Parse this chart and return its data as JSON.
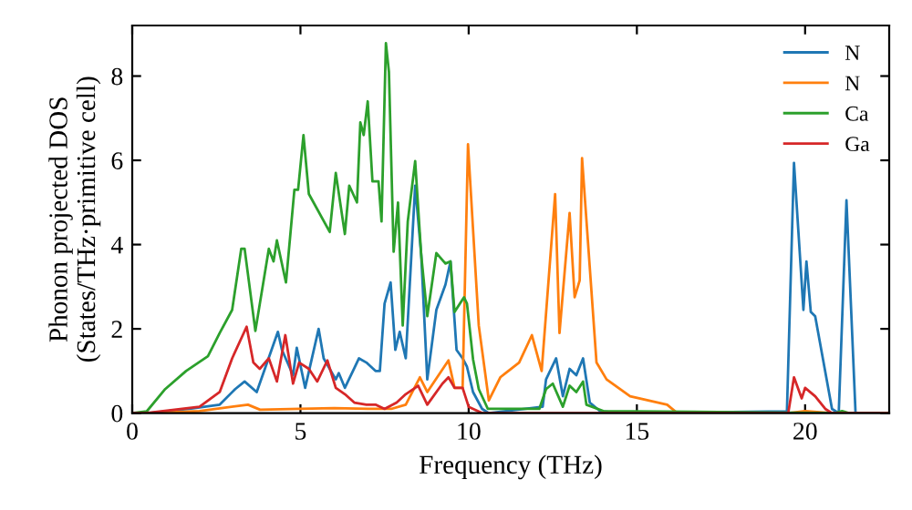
{
  "chart_data": {
    "type": "line",
    "xlabel": "Frequency (THz)",
    "ylabel": "Phonon projected DOS\n(States/THz·primitive cell)",
    "xlim": [
      0,
      22.5
    ],
    "ylim": [
      0,
      9.2
    ],
    "xticks": [
      0,
      5,
      10,
      15,
      20
    ],
    "yticks": [
      0,
      2,
      4,
      6,
      8
    ],
    "grid": false,
    "legend": "top right",
    "marker": "none",
    "line_style": "solid",
    "series": [
      {
        "name": "N",
        "color": "#1f77b4",
        "x": [
          0,
          0.5,
          1.7,
          2.6,
          3.06,
          3.34,
          3.7,
          4.33,
          4.45,
          4.78,
          4.89,
          5.14,
          5.54,
          5.69,
          6.05,
          6.14,
          6.32,
          6.56,
          6.74,
          6.96,
          7.23,
          7.36,
          7.5,
          7.68,
          7.82,
          7.95,
          8.13,
          8.41,
          8.59,
          8.77,
          9.04,
          9.31,
          9.46,
          9.64,
          9.82,
          9.95,
          10.13,
          10.4,
          10.6,
          12.2,
          12.3,
          12.6,
          12.8,
          13.0,
          13.2,
          13.4,
          13.6,
          13.9,
          14.5,
          19.46,
          19.67,
          19.95,
          20.04,
          20.17,
          20.3,
          20.8,
          21.0,
          21.23,
          21.5,
          22.5
        ],
        "values": [
          0,
          0,
          0.1,
          0.2,
          0.57,
          0.75,
          0.5,
          1.93,
          1.5,
          0.9,
          1.55,
          0.6,
          2.0,
          1.3,
          0.8,
          0.95,
          0.6,
          1.0,
          1.3,
          1.2,
          1.0,
          1.0,
          2.6,
          3.1,
          1.5,
          1.93,
          1.3,
          5.4,
          3.75,
          0.8,
          2.45,
          3.05,
          3.6,
          1.5,
          1.3,
          1.1,
          0.5,
          0.1,
          0,
          0.15,
          0.8,
          1.3,
          0.4,
          1.05,
          0.9,
          1.3,
          0.25,
          0.05,
          0,
          0.04,
          5.94,
          2.45,
          3.6,
          2.4,
          2.3,
          0.1,
          0,
          5.05,
          0,
          0
        ]
      },
      {
        "name": "N",
        "color": "#ff7f0e",
        "x": [
          0,
          0.5,
          2.0,
          3.44,
          3.8,
          5.0,
          6.0,
          7.0,
          7.7,
          8.13,
          8.55,
          8.77,
          9.4,
          9.58,
          9.82,
          9.98,
          10.3,
          10.6,
          10.94,
          11.1,
          11.5,
          11.88,
          12.17,
          12.57,
          12.7,
          13.0,
          13.15,
          13.3,
          13.37,
          13.8,
          14.1,
          14.8,
          15.9,
          16.2,
          19.5,
          20.0,
          20.8,
          22.5
        ],
        "values": [
          0,
          0,
          0.05,
          0.2,
          0.08,
          0.1,
          0.12,
          0.1,
          0.1,
          0.2,
          0.85,
          0.5,
          1.25,
          0.6,
          0.6,
          6.38,
          2.08,
          0.3,
          0.85,
          0.95,
          1.2,
          1.85,
          1.0,
          5.2,
          1.9,
          4.75,
          2.75,
          3.15,
          6.05,
          1.2,
          0.8,
          0.4,
          0.2,
          0,
          0,
          0.05,
          0,
          0
        ]
      },
      {
        "name": "Ca",
        "color": "#2ca02c",
        "x": [
          0,
          0.43,
          0.98,
          1.6,
          2.25,
          2.6,
          2.97,
          3.24,
          3.34,
          3.66,
          4.06,
          4.2,
          4.3,
          4.57,
          4.82,
          4.93,
          5.09,
          5.25,
          5.87,
          6.05,
          6.32,
          6.45,
          6.68,
          6.78,
          6.88,
          7.0,
          7.14,
          7.32,
          7.41,
          7.54,
          7.63,
          7.77,
          7.9,
          8.04,
          8.19,
          8.41,
          8.59,
          8.77,
          9.04,
          9.31,
          9.46,
          9.58,
          9.86,
          9.95,
          10.13,
          10.3,
          10.57,
          12.1,
          12.3,
          12.5,
          12.8,
          13.0,
          13.2,
          13.4,
          13.5,
          14.0,
          20.9,
          21.1,
          21.3,
          22.5
        ],
        "values": [
          0,
          0.04,
          0.57,
          1.0,
          1.35,
          1.9,
          2.45,
          3.9,
          3.9,
          1.95,
          3.9,
          3.6,
          4.1,
          3.1,
          5.3,
          5.3,
          6.6,
          5.2,
          4.3,
          5.7,
          4.25,
          5.4,
          5.0,
          6.9,
          6.6,
          7.4,
          5.5,
          5.5,
          4.55,
          8.78,
          8.1,
          3.83,
          5.0,
          2.08,
          4.55,
          5.98,
          3.75,
          2.3,
          3.8,
          3.55,
          3.6,
          2.4,
          2.75,
          2.6,
          1.28,
          0.57,
          0.1,
          0.1,
          0.57,
          0.7,
          0.15,
          0.65,
          0.5,
          0.75,
          0.2,
          0.05,
          0,
          0.05,
          0,
          0
        ]
      },
      {
        "name": "Ga",
        "color": "#d62728",
        "x": [
          0,
          0.4,
          2.0,
          2.6,
          2.97,
          3.4,
          3.6,
          3.79,
          4.06,
          4.3,
          4.55,
          4.78,
          4.96,
          5.25,
          5.5,
          5.8,
          6.05,
          6.32,
          6.6,
          6.96,
          7.23,
          7.5,
          7.86,
          8.13,
          8.5,
          8.77,
          9.22,
          9.4,
          9.58,
          9.82,
          10.0,
          10.4,
          19.5,
          19.67,
          19.9,
          20.0,
          20.3,
          20.6,
          20.8,
          22.5
        ],
        "values": [
          0,
          0,
          0.15,
          0.5,
          1.3,
          2.05,
          1.2,
          1.05,
          1.3,
          0.75,
          1.85,
          0.7,
          1.2,
          1.05,
          0.75,
          1.25,
          0.6,
          0.45,
          0.25,
          0.2,
          0.2,
          0.1,
          0.25,
          0.45,
          0.65,
          0.2,
          0.7,
          0.85,
          0.6,
          0.6,
          0.15,
          0,
          0,
          0.85,
          0.35,
          0.6,
          0.4,
          0.1,
          0,
          0
        ]
      }
    ]
  }
}
